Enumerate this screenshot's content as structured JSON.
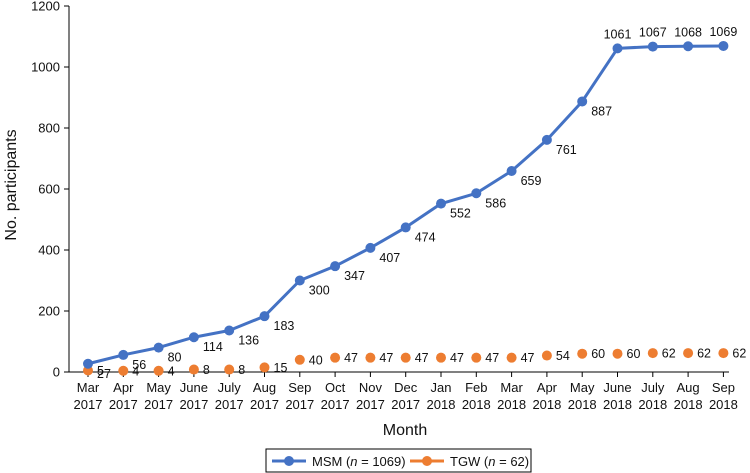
{
  "chart_data": {
    "type": "line",
    "ylabel": "No. participants",
    "xlabel": "Month",
    "ylim": [
      0,
      1200
    ],
    "yticks": [
      0,
      200,
      400,
      600,
      800,
      1000,
      1200
    ],
    "categories": [
      [
        "Mar",
        "2017"
      ],
      [
        "Apr",
        "2017"
      ],
      [
        "May",
        "2017"
      ],
      [
        "June",
        "2017"
      ],
      [
        "July",
        "2017"
      ],
      [
        "Aug",
        "2017"
      ],
      [
        "Sep",
        "2017"
      ],
      [
        "Oct",
        "2017"
      ],
      [
        "Nov",
        "2017"
      ],
      [
        "Dec",
        "2017"
      ],
      [
        "Jan",
        "2018"
      ],
      [
        "Feb",
        "2018"
      ],
      [
        "Mar",
        "2018"
      ],
      [
        "Apr",
        "2018"
      ],
      [
        "May",
        "2018"
      ],
      [
        "June",
        "2018"
      ],
      [
        "July",
        "2018"
      ],
      [
        "Aug",
        "2018"
      ],
      [
        "Sep",
        "2018"
      ]
    ],
    "series": [
      {
        "name": "MSM",
        "legend_n": "1069",
        "color": "#4472c4",
        "style": "line-with-markers",
        "values": [
          27,
          56,
          80,
          114,
          136,
          183,
          300,
          347,
          407,
          474,
          552,
          586,
          659,
          761,
          887,
          1061,
          1067,
          1068,
          1069
        ]
      },
      {
        "name": "TGW",
        "legend_n": "62",
        "color": "#ed7d31",
        "style": "markers-only",
        "values": [
          5,
          4,
          4,
          8,
          8,
          15,
          40,
          47,
          47,
          47,
          47,
          47,
          47,
          54,
          60,
          60,
          62,
          62,
          62
        ]
      }
    ],
    "grid": false,
    "legend_position": "bottom-center"
  }
}
